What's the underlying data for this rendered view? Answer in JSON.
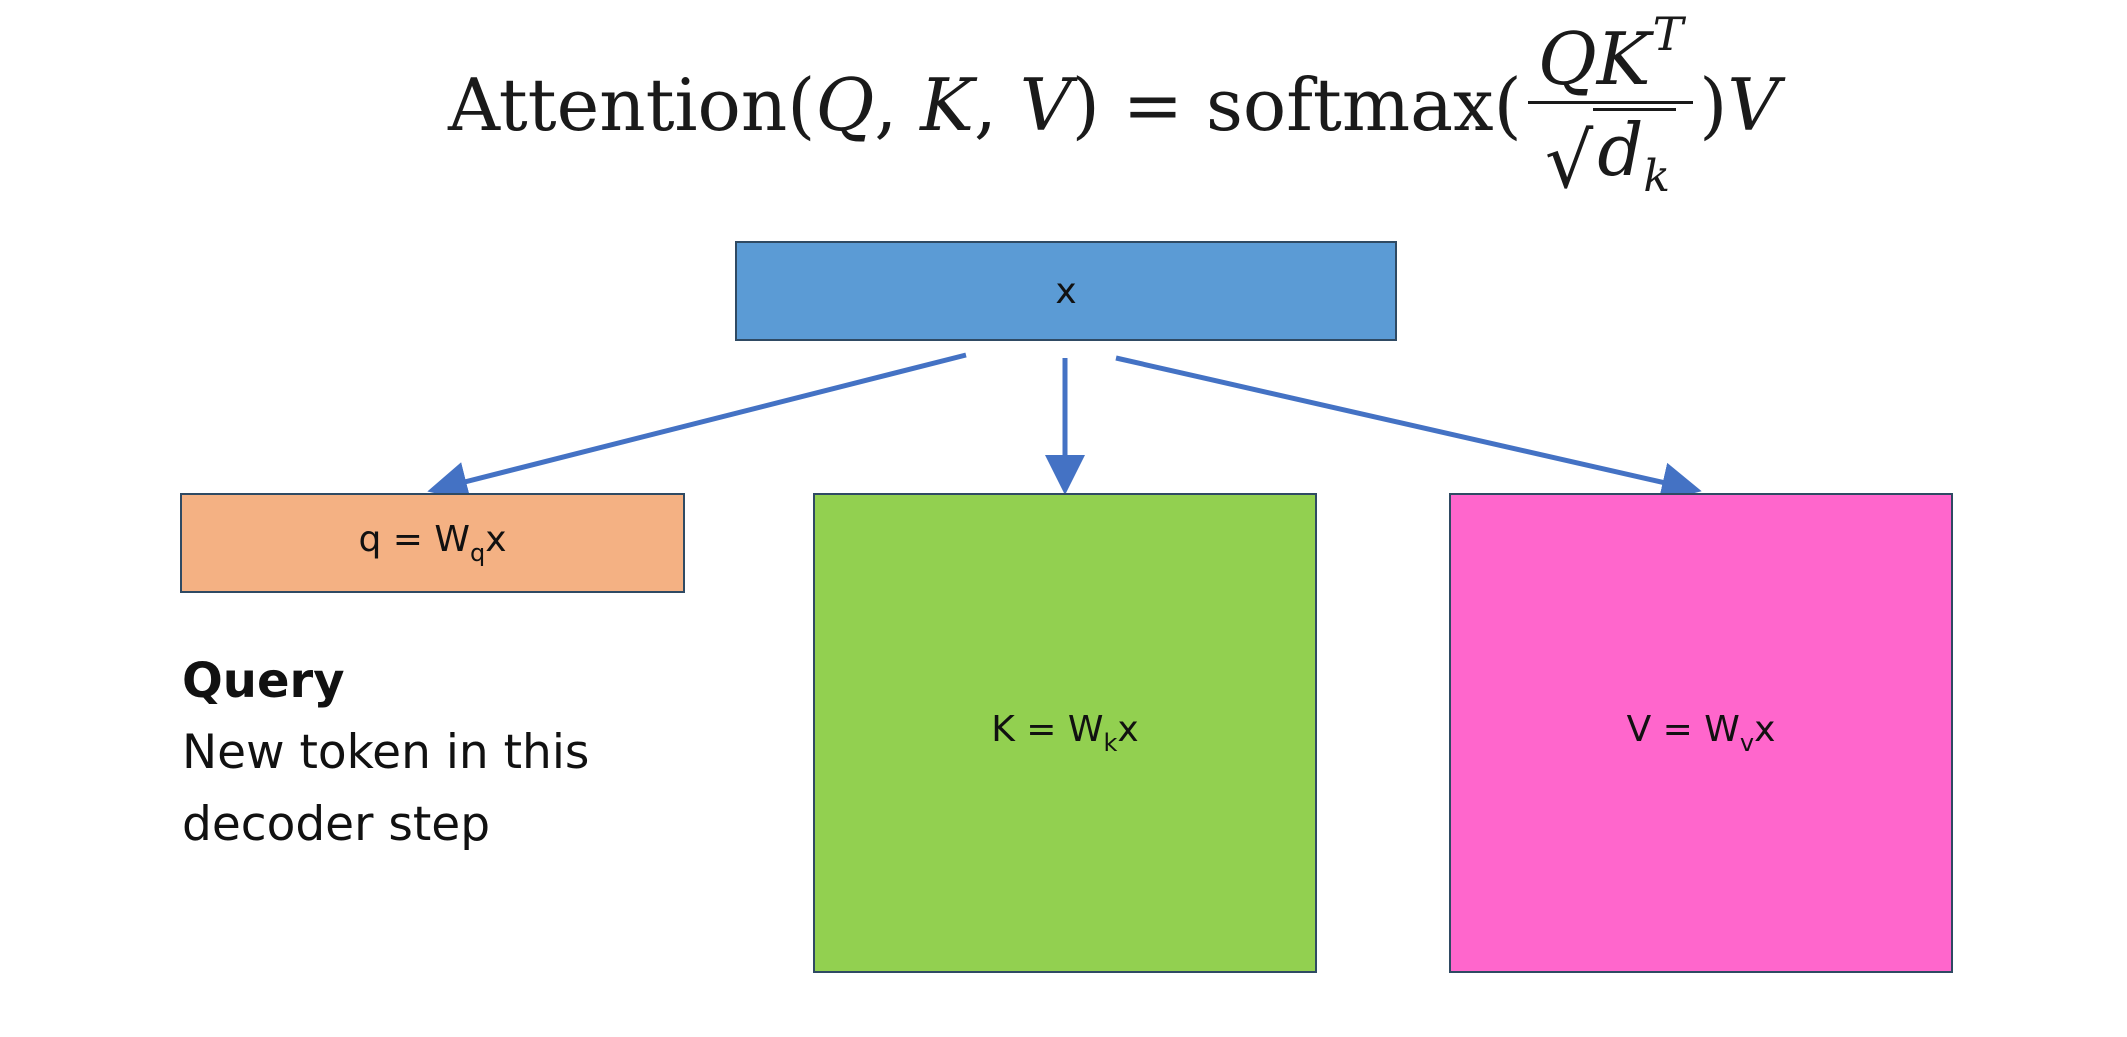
{
  "formula": {
    "fn_name": "Attention",
    "open": "(",
    "arg_q": "Q",
    "comma1": ",",
    "arg_k": "K",
    "comma2": ",",
    "arg_v": "V",
    "close": ")",
    "equals": "=",
    "softmax": "softmax",
    "paren_open": "(",
    "num_q": "Q",
    "num_k": "K",
    "num_t": "T",
    "sqrt": "√",
    "den_d": "d",
    "den_k": "k",
    "paren_close": ")",
    "tail_v": "V"
  },
  "boxes": {
    "x": {
      "label": "x",
      "color": "#5b9bd5"
    },
    "q": {
      "label_main": "q = W",
      "label_sub": "q",
      "label_tail": "x",
      "color": "#f4b183"
    },
    "k": {
      "label_main": "K = W",
      "label_sub": "k",
      "label_tail": "x",
      "color": "#92d050"
    },
    "v": {
      "label_main": "V = W",
      "label_sub": "v",
      "label_tail": "x",
      "color": "#ff66cc"
    }
  },
  "arrow_color": "#4472c4",
  "query": {
    "title": "Query",
    "description": "New token in this decoder step"
  }
}
